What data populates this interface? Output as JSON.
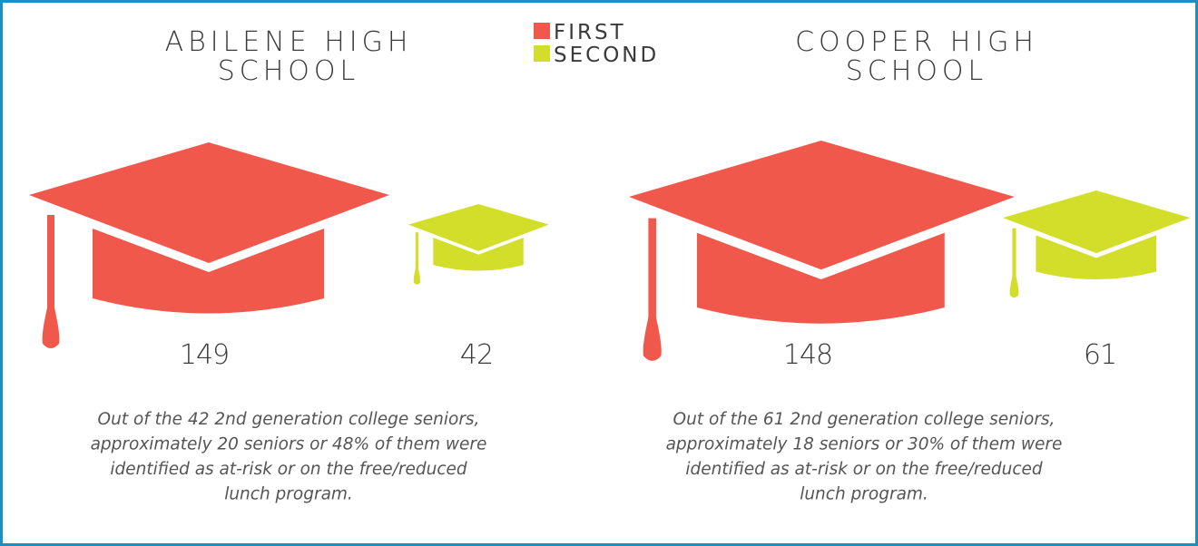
{
  "legend": [
    {
      "label": "FIRST",
      "color": "#f0584b"
    },
    {
      "label": "SECOND",
      "color": "#d3de2b"
    }
  ],
  "schools": [
    {
      "title": [
        "ABILENE HIGH",
        "SCHOOL"
      ],
      "first": 149,
      "second": 42,
      "note": [
        "Out of the 42 2nd generation college seniors,",
        "approximately 20 seniors or 48% of them were",
        "identified as at-risk or on the free/reduced",
        "lunch program."
      ]
    },
    {
      "title": [
        "COOPER HIGH",
        "SCHOOL"
      ],
      "first": 148,
      "second": 61,
      "note": [
        "Out of the 61 2nd generation college seniors,",
        "approximately 18 seniors or 30% of them were",
        "identified as at-risk or on the free/reduced",
        "lunch program."
      ]
    }
  ]
}
